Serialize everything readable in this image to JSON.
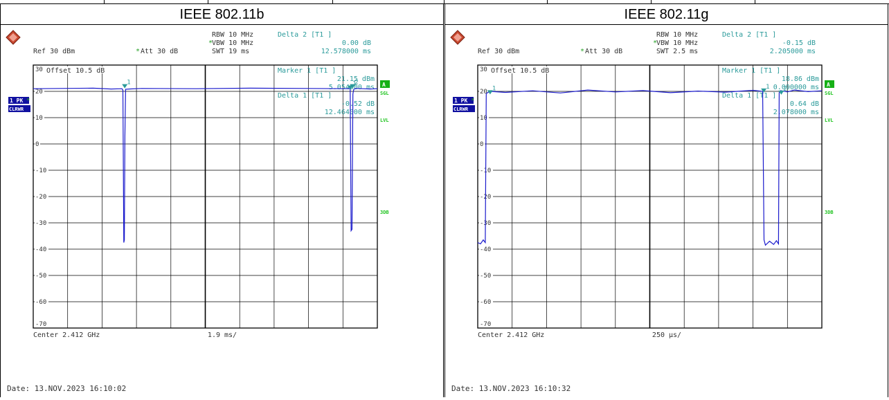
{
  "chart_data": [
    {
      "type": "line",
      "title": "IEEE 802.11b",
      "instrument": {
        "rbw": "RBW 10 MHz",
        "vbw": "VBW 10 MHz",
        "swt": "SWT 19 ms",
        "ref": "Ref  30 dBm",
        "att": "Att  30 dB",
        "offset": "Offset  10.5 dB",
        "delta2_label": "Delta 2 [T1 ]",
        "delta2_value": "0.00 dB",
        "delta2_time": "12.578000 ms",
        "marker1_label": "Marker 1 [T1 ]",
        "marker1_value": "21.15 dBm",
        "marker1_time": "5.054000 ms",
        "delta1_label": "Delta 1 [T1 ]",
        "delta1_value": "-0.52 dB",
        "delta1_time": "12.464000 ms",
        "center": "Center 2.412 GHz",
        "span_div": "1.9 ms/",
        "date": "Date: 13.NOV.2023  16:10:02"
      },
      "side_labels": {
        "trace": "1 PK",
        "mode": "CLRWR",
        "a": "A",
        "sgl": "SGL",
        "lvl": "LVL",
        "threedb": "3DB"
      },
      "x_unit": "ms",
      "x_range": [
        0,
        19
      ],
      "y_range": [
        -70,
        30
      ],
      "y_ticks": [
        "30",
        "20",
        "10",
        "0",
        "-10",
        "-20",
        "-30",
        "-40",
        "-50",
        "-60",
        "-70"
      ],
      "grid": true,
      "series": [
        {
          "x": [
            0,
            3.3,
            4.3,
            4.9,
            4.95,
            5.0,
            5.03,
            5.06,
            5.1,
            5.3,
            6.0,
            9.0,
            12.0,
            15.0,
            17.5,
            17.55,
            17.6,
            17.65,
            17.7,
            17.8,
            18.2,
            18.6,
            19
          ],
          "y": [
            21.0,
            21.2,
            20.9,
            21.0,
            20.5,
            -37.5,
            -36.5,
            3.0,
            20.8,
            20.9,
            21.1,
            21.0,
            21.2,
            21.1,
            21.0,
            -33.0,
            -32.5,
            19.0,
            20.8,
            21.1,
            21.0,
            20.9,
            21.0
          ]
        }
      ],
      "markers": [
        {
          "label": "1",
          "x": 5.054,
          "y": 21.15
        },
        {
          "label": "2",
          "x": 17.632,
          "y": 21.15
        },
        {
          "label": "1",
          "x": 17.518,
          "y": 20.63
        }
      ]
    },
    {
      "type": "line",
      "title": "IEEE 802.11g",
      "instrument": {
        "rbw": "RBW 10 MHz",
        "vbw": "VBW 10 MHz",
        "swt": "SWT 2.5 ms",
        "ref": "Ref  30 dBm",
        "att": "Att  30 dB",
        "offset": "Offset  10.5 dB",
        "delta2_label": "Delta 2 [T1 ]",
        "delta2_value": "-0.15 dB",
        "delta2_time": "2.205000 ms",
        "marker1_label": "Marker 1 [T1 ]",
        "marker1_value": "18.86 dBm",
        "marker1_time": "0.090000 ms",
        "delta1_label": "Delta 1 [T1 ]",
        "delta1_value": "0.64 dB",
        "delta1_time": "2.078000 ms",
        "center": "Center 2.412 GHz",
        "span_div": "250 µs/",
        "date": "Date: 13.NOV.2023  16:10:32"
      },
      "side_labels": {
        "trace": "1 PK",
        "mode": "CLRWR",
        "a": "A",
        "sgl": "SGL",
        "lvl": "LVL",
        "threedb": "3DB"
      },
      "x_unit": "ms",
      "x_range": [
        0,
        2.5
      ],
      "y_range": [
        -70,
        30
      ],
      "y_ticks": [
        "30",
        "20",
        "10",
        "0",
        "-10",
        "-20",
        "-30",
        "-40",
        "-50",
        "-60",
        "-70"
      ],
      "grid": true,
      "series": [
        {
          "x": [
            0,
            0.02,
            0.04,
            0.055,
            0.062,
            0.07,
            0.09,
            0.2,
            0.4,
            0.6,
            0.8,
            1.0,
            1.2,
            1.4,
            1.6,
            1.8,
            2.0,
            2.07,
            2.08,
            2.09,
            2.12,
            2.15,
            2.17,
            2.185,
            2.19,
            2.2,
            2.25,
            2.3,
            2.4,
            2.5
          ],
          "y": [
            -37.5,
            -38.0,
            -36.5,
            -37.5,
            19.0,
            19.5,
            20.0,
            19.6,
            20.2,
            19.4,
            20.5,
            19.8,
            20.3,
            19.5,
            20.1,
            19.7,
            20.4,
            20.0,
            -36.5,
            -38.5,
            -37.0,
            -38.2,
            -36.8,
            -38.0,
            19.5,
            20.3,
            19.8,
            20.5,
            19.9,
            20.2
          ]
        }
      ],
      "markers": [
        {
          "label": "1",
          "x": 0.09,
          "y": 18.86
        },
        {
          "label": "1",
          "x": 2.078,
          "y": 19.5
        },
        {
          "label": "2",
          "x": 2.205,
          "y": 18.71
        }
      ]
    }
  ]
}
